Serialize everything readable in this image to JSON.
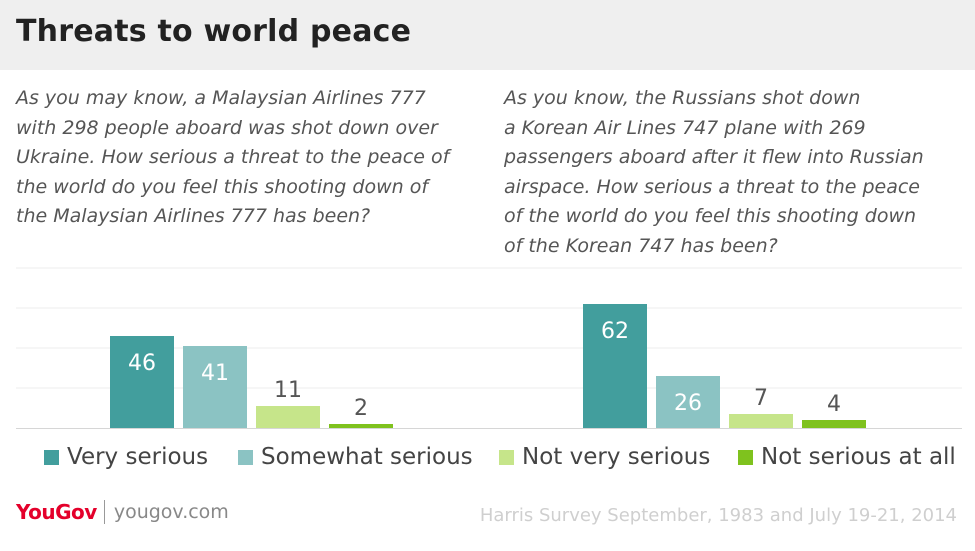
{
  "title": "Threats to world peace",
  "questions": {
    "left": "As you may know, a Malaysian Airlines 777\nwith 298 people aboard was shot down over\nUkraine. How serious a threat to the peace of\nthe world do you feel this shooting down of\nthe Malaysian Airlines 777 has been?",
    "right": "As you know, the Russians shot down\na Korean Air Lines 747 plane with 269\npassengers aboard after it flew into Russian\nairspace. How serious a threat to the peace\nof the world do you feel this shooting down\nof the Korean 747 has been?"
  },
  "legend": [
    {
      "label": "Very serious",
      "color": "#429e9d"
    },
    {
      "label": "Somewhat serious",
      "color": "#8bc3c3"
    },
    {
      "label": "Not very serious",
      "color": "#c6e58a"
    },
    {
      "label": "Not serious at all",
      "color": "#7fc21e"
    }
  ],
  "chart_data": {
    "type": "bar",
    "categories": [
      "Very serious",
      "Somewhat serious",
      "Not very serious",
      "Not serious at all"
    ],
    "groups": [
      {
        "values": [
          46,
          41,
          11,
          2
        ]
      },
      {
        "values": [
          62,
          26,
          7,
          4
        ]
      }
    ],
    "ylim": [
      0,
      80
    ],
    "grid": true,
    "legend_position": "bottom"
  },
  "footer": {
    "brand": "YouGov",
    "url": "yougov.com",
    "source": "Harris Survey September, 1983 and July 19-21, 2014"
  }
}
